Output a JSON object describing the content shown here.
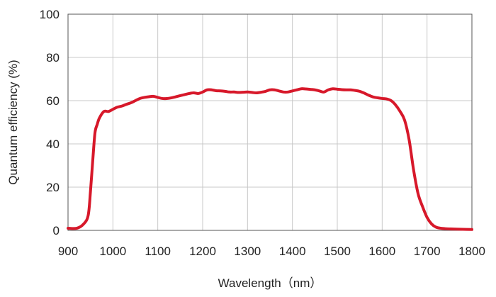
{
  "chart_data": {
    "type": "line",
    "title": "",
    "xlabel": "Wavelength（nm）",
    "ylabel": "Quantum efficiency (%)",
    "xlim": [
      900,
      1800
    ],
    "ylim": [
      0,
      100
    ],
    "xticks": [
      900,
      1000,
      1100,
      1200,
      1300,
      1400,
      1500,
      1600,
      1700,
      1800
    ],
    "yticks": [
      0,
      20,
      40,
      60,
      80,
      100
    ],
    "grid": true,
    "legend": "none",
    "series": [
      {
        "color": "#d7182a",
        "x": [
          900,
          920,
          935,
          945,
          950,
          955,
          960,
          965,
          970,
          980,
          990,
          1000,
          1010,
          1020,
          1030,
          1040,
          1050,
          1060,
          1070,
          1080,
          1090,
          1100,
          1110,
          1120,
          1130,
          1140,
          1150,
          1160,
          1170,
          1180,
          1190,
          1200,
          1210,
          1220,
          1230,
          1240,
          1250,
          1260,
          1270,
          1280,
          1290,
          1300,
          1310,
          1320,
          1330,
          1340,
          1350,
          1360,
          1370,
          1380,
          1390,
          1400,
          1410,
          1420,
          1430,
          1440,
          1450,
          1460,
          1470,
          1480,
          1490,
          1500,
          1510,
          1520,
          1530,
          1540,
          1550,
          1560,
          1570,
          1580,
          1590,
          1600,
          1610,
          1620,
          1630,
          1640,
          1650,
          1660,
          1670,
          1680,
          1690,
          1700,
          1710,
          1720,
          1730,
          1740,
          1760,
          1780,
          1800
        ],
        "values": [
          1,
          1,
          3,
          7,
          18,
          32,
          45,
          49,
          52,
          55,
          55,
          56,
          57,
          57.5,
          58.3,
          59,
          60,
          61,
          61.5,
          61.8,
          62,
          61.5,
          61,
          61,
          61.3,
          61.8,
          62.3,
          62.8,
          63.3,
          63.6,
          63.3,
          64,
          65,
          65,
          64.6,
          64.5,
          64.3,
          64,
          64,
          63.8,
          63.9,
          64,
          63.8,
          63.6,
          63.9,
          64.3,
          65,
          65,
          64.5,
          64,
          64,
          64.5,
          65,
          65.5,
          65.4,
          65.2,
          65,
          64.5,
          64,
          65,
          65.5,
          65.3,
          65.1,
          65,
          65,
          64.7,
          64.3,
          63.5,
          62.5,
          61.7,
          61.3,
          61,
          60.8,
          60,
          58,
          55,
          51,
          42,
          28,
          17,
          11,
          6,
          3,
          1.5,
          1,
          0.8,
          0.6,
          0.5,
          0.4
        ]
      }
    ]
  }
}
